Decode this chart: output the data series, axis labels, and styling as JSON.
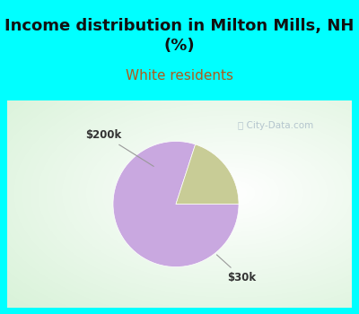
{
  "title": "Income distribution in Milton Mills, NH\n(%)",
  "subtitle": "White residents",
  "title_fontsize": 13,
  "subtitle_fontsize": 11,
  "title_color": "#111111",
  "subtitle_color": "#b05a1a",
  "page_bg_color": "#00ffff",
  "chart_bg_color": "#e8f5e2",
  "slices": [
    80.0,
    20.0
  ],
  "slice_colors": [
    "#c9a8e0",
    "#c8cc96"
  ],
  "slice_labels": [
    "$30k",
    "$200k"
  ],
  "watermark": "City-Data.com",
  "start_angle": 72
}
